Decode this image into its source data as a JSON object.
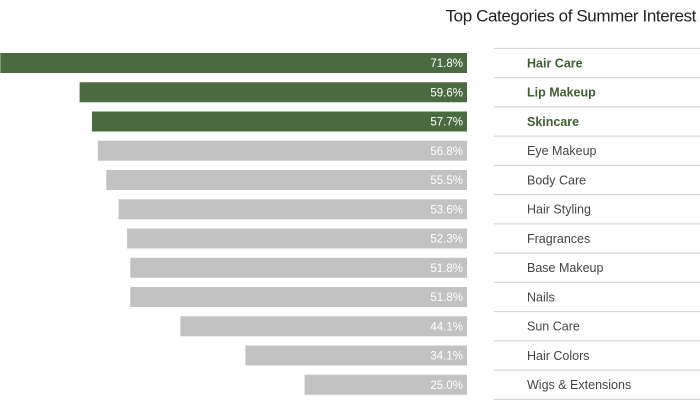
{
  "chart_data": {
    "type": "bar",
    "orientation": "horizontal",
    "title": "Top Categories of Summer Interest",
    "categories": [
      "Hair Care",
      "Lip Makeup",
      "Skincare",
      "Eye Makeup",
      "Body Care",
      "Hair Styling",
      "Fragrances",
      "Base Makeup",
      "Nails",
      "Sun Care",
      "Hair Colors",
      "Wigs & Extensions"
    ],
    "values": [
      71.8,
      59.6,
      57.7,
      56.8,
      55.5,
      53.6,
      52.3,
      51.8,
      51.8,
      44.1,
      34.1,
      25.0
    ],
    "value_labels": [
      "71.8%",
      "59.6%",
      "57.7%",
      "56.8%",
      "55.5%",
      "53.6%",
      "52.3%",
      "51.8%",
      "51.8%",
      "44.1%",
      "34.1%",
      "25.0%"
    ],
    "colors": [
      "#4a6b3f",
      "#4a6b3f",
      "#4a6b3f",
      "#c2c2c2",
      "#c2c2c2",
      "#c2c2c2",
      "#c2c2c2",
      "#c2c2c2",
      "#c2c2c2",
      "#c2c2c2",
      "#c2c2c2",
      "#c2c2c2"
    ],
    "highlight_color": "#4a6b3f"
  }
}
